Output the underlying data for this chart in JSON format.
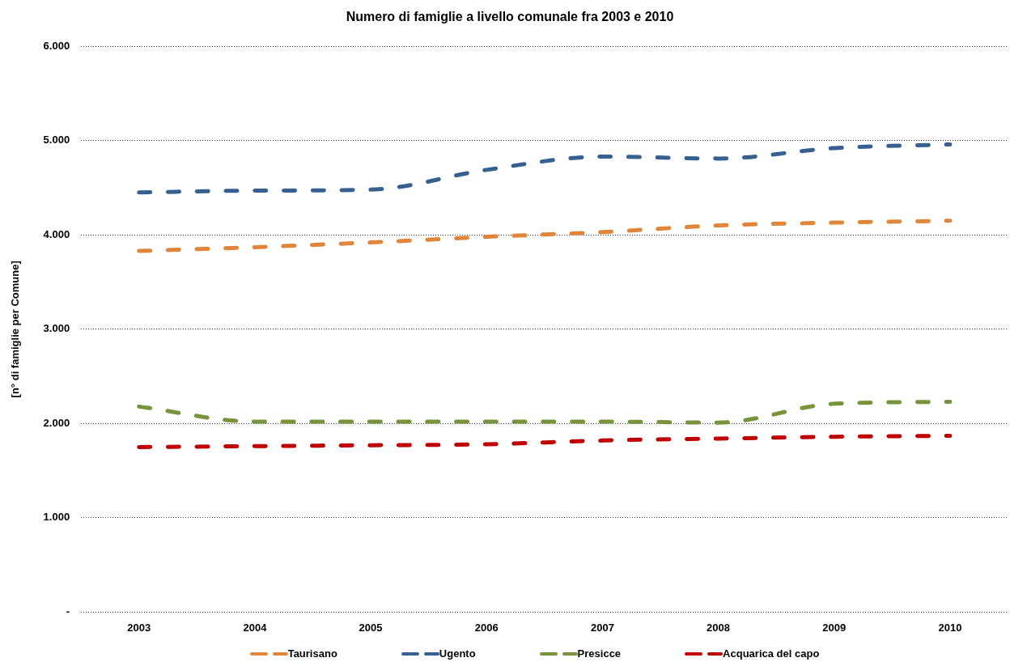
{
  "chart_data": {
    "type": "line",
    "title": "Numero di famiglie a livello comunale fra 2003 e 2010",
    "ylabel": "[n° di famiglie per Comune]",
    "categories": [
      "2003",
      "2004",
      "2005",
      "2006",
      "2007",
      "2008",
      "2009",
      "2010"
    ],
    "series": [
      {
        "name": "Taurisano",
        "color": "#e0853a",
        "values": [
          3830,
          3870,
          3920,
          3980,
          4030,
          4100,
          4130,
          4150
        ]
      },
      {
        "name": "Ugento",
        "color": "#366092",
        "values": [
          4450,
          4470,
          4480,
          4690,
          4830,
          4810,
          4920,
          4960
        ]
      },
      {
        "name": "Presicce",
        "color": "#77933c",
        "values": [
          2180,
          2020,
          2020,
          2020,
          2020,
          2010,
          2210,
          2230
        ]
      },
      {
        "name": "Acquarica del capo",
        "color": "#c00000",
        "values": [
          1750,
          1760,
          1770,
          1780,
          1820,
          1840,
          1860,
          1870
        ]
      }
    ],
    "ylim": [
      0,
      6000
    ],
    "yticks": [
      {
        "value": 0,
        "label": "-"
      },
      {
        "value": 1000,
        "label": "1.000"
      },
      {
        "value": 2000,
        "label": "2.000"
      },
      {
        "value": 3000,
        "label": "3.000"
      },
      {
        "value": 4000,
        "label": "4.000"
      },
      {
        "value": 5000,
        "label": "5.000"
      },
      {
        "value": 6000,
        "label": "6.000"
      }
    ],
    "grid": "y",
    "legend": "bottom",
    "line_style": "dashed",
    "marker": "none"
  }
}
